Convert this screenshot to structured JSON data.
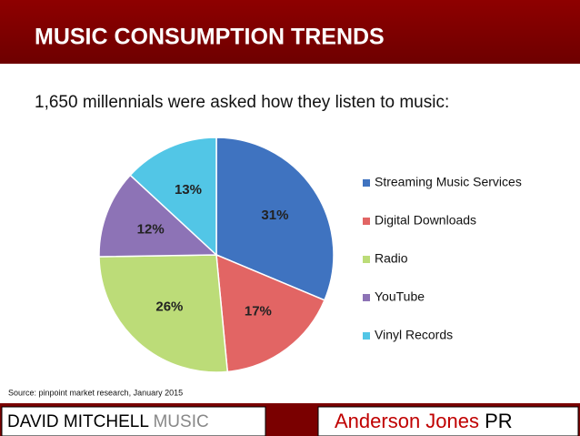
{
  "chart_data": {
    "type": "pie",
    "title": "MUSIC CONSUMPTION TRENDS",
    "subtitle": "1,650 millennials were asked how they listen to music:",
    "source": "Source: pinpoint market research, January 2015",
    "categories": [
      "Streaming Music Services",
      "Digital Downloads",
      "Radio",
      "YouTube",
      "Vinyl Records"
    ],
    "values": [
      31,
      17,
      26,
      12,
      13
    ],
    "value_labels": [
      "31%",
      "17%",
      "26%",
      "12%",
      "13%"
    ],
    "colors": [
      "#3f73c0",
      "#e26564",
      "#bcdc78",
      "#8d73b6",
      "#52c6e6"
    ],
    "legend": "right"
  },
  "footer": {
    "left_name": "DAVID MITCHELL",
    "left_brand": "MUSIC",
    "right_name": "Anderson Jones",
    "right_brand": "PR"
  }
}
